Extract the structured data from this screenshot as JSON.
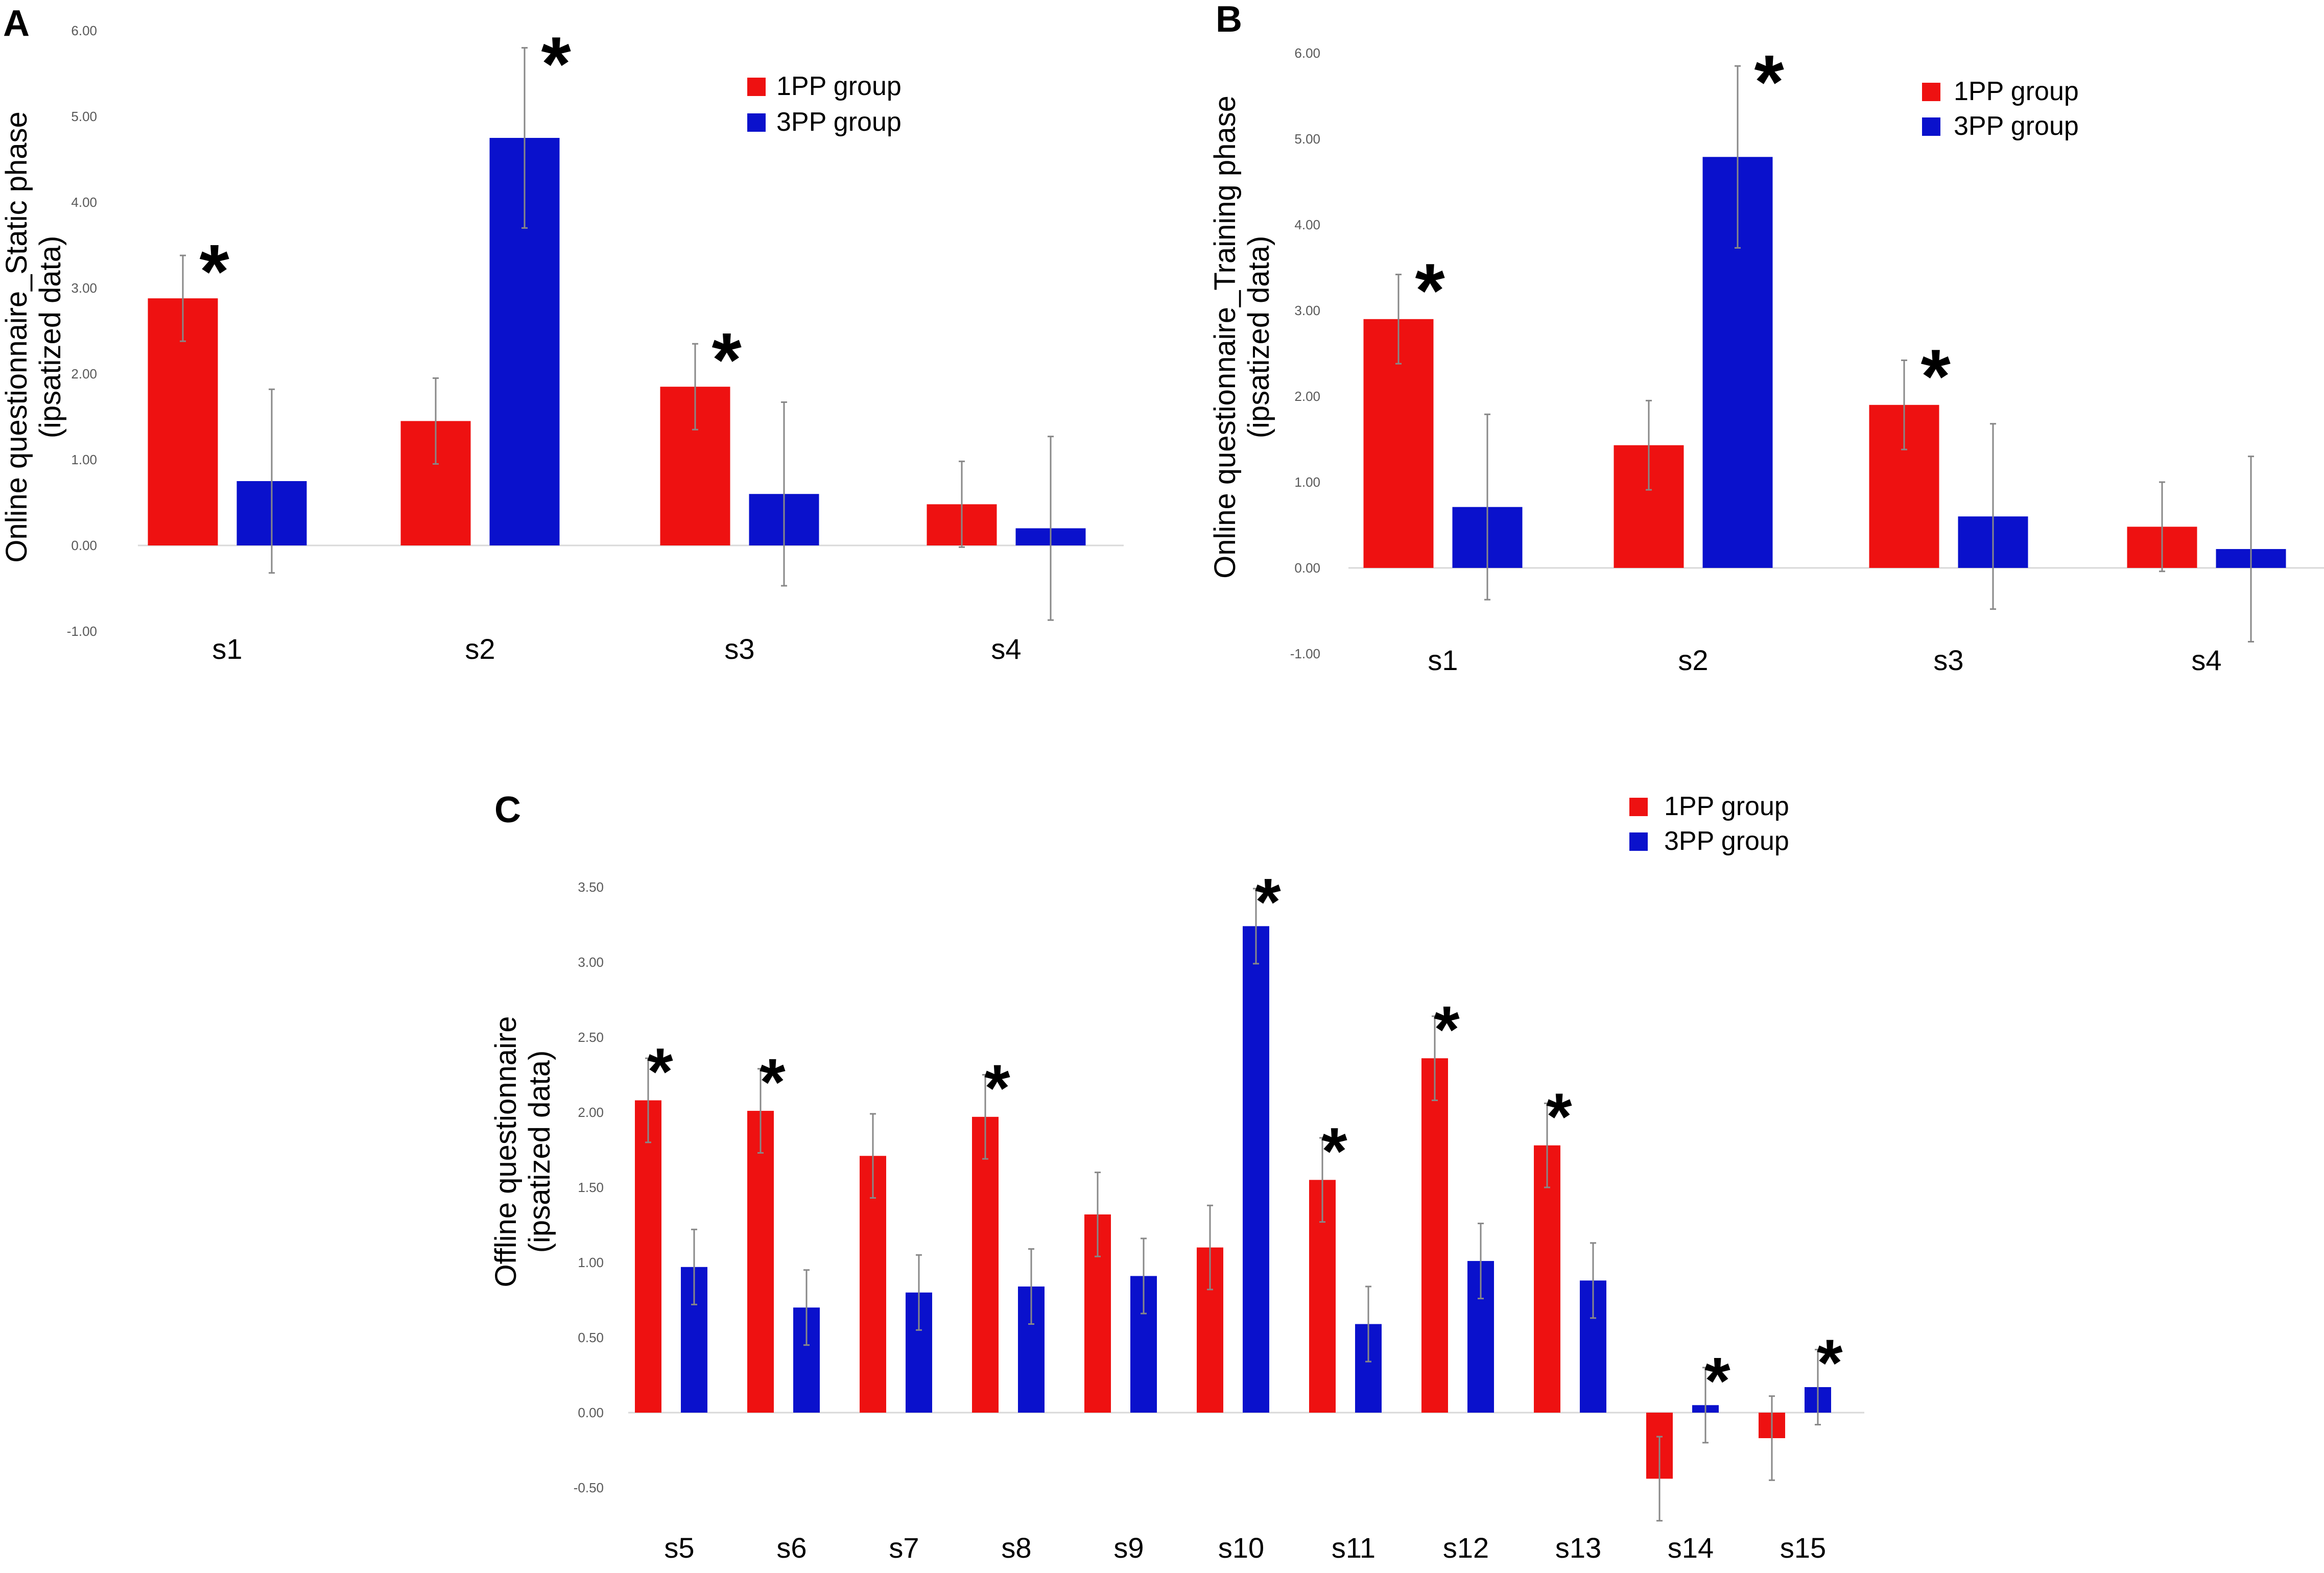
{
  "colors": {
    "group1": "#EE1111",
    "group2": "#0A11CC",
    "error": "#888888",
    "axis": "#d9d9d9",
    "text": "#000000",
    "tick": "#595959"
  },
  "chart_data": [
    {
      "panel": "A",
      "type": "bar",
      "ylabel_line1": "Online questionnaire_Static phase",
      "ylabel_line2": "(ipsatized data)",
      "ylim": [
        -1.0,
        6.0
      ],
      "yticks": [
        "-1.00",
        "0.00",
        "1.00",
        "2.00",
        "3.00",
        "4.00",
        "5.00",
        "6.00"
      ],
      "categories": [
        "s1",
        "s2",
        "s3",
        "s4"
      ],
      "series": [
        {
          "name": "1PP group",
          "values": [
            2.88,
            1.45,
            1.85,
            0.48
          ],
          "errors": [
            0.5,
            0.5,
            0.5,
            0.5
          ]
        },
        {
          "name": "3PP group",
          "values": [
            0.75,
            4.75,
            0.6,
            0.2
          ],
          "errors": [
            1.07,
            1.05,
            1.07,
            1.07
          ]
        }
      ],
      "significance": [
        {
          "category": 0,
          "series": 0,
          "mark": "*"
        },
        {
          "category": 1,
          "series": 1,
          "mark": "*"
        },
        {
          "category": 2,
          "series": 0,
          "mark": "*"
        }
      ],
      "legend_position": "top-right"
    },
    {
      "panel": "B",
      "type": "bar",
      "ylabel_line1": "Online questionnaire_Training phase",
      "ylabel_line2": "(ipsatized data)",
      "ylim": [
        -1.0,
        6.0
      ],
      "yticks": [
        "-1.00",
        "0.00",
        "1.00",
        "2.00",
        "3.00",
        "4.00",
        "5.00",
        "6.00"
      ],
      "categories": [
        "s1",
        "s2",
        "s3",
        "s4"
      ],
      "series": [
        {
          "name": "1PP group",
          "values": [
            2.9,
            1.43,
            1.9,
            0.48
          ],
          "errors": [
            0.52,
            0.52,
            0.52,
            0.52
          ]
        },
        {
          "name": "3PP group",
          "values": [
            0.71,
            4.79,
            0.6,
            0.22
          ],
          "errors": [
            1.08,
            1.06,
            1.08,
            1.08
          ]
        }
      ],
      "significance": [
        {
          "category": 0,
          "series": 0,
          "mark": "*"
        },
        {
          "category": 1,
          "series": 1,
          "mark": "*"
        },
        {
          "category": 2,
          "series": 0,
          "mark": "*"
        }
      ],
      "legend_position": "top-right"
    },
    {
      "panel": "C",
      "type": "bar",
      "ylabel_line1": "Offline questionnaire",
      "ylabel_line2": "(ipsatized data)",
      "ylim": [
        -0.5,
        3.5
      ],
      "yticks": [
        "-0.50",
        "0.00",
        "0.50",
        "1.00",
        "1.50",
        "2.00",
        "2.50",
        "3.00",
        "3.50"
      ],
      "categories": [
        "s5",
        "s6",
        "s7",
        "s8",
        "s9",
        "s10",
        "s11",
        "s12",
        "s13",
        "s14",
        "s15"
      ],
      "series": [
        {
          "name": "1PP group",
          "values": [
            2.08,
            2.01,
            1.71,
            1.97,
            1.32,
            1.1,
            1.55,
            2.36,
            1.78,
            -0.44,
            -0.17
          ],
          "errors": [
            0.28,
            0.28,
            0.28,
            0.28,
            0.28,
            0.28,
            0.28,
            0.28,
            0.28,
            0.28,
            0.28
          ]
        },
        {
          "name": "3PP group",
          "values": [
            0.97,
            0.7,
            0.8,
            0.84,
            0.91,
            3.24,
            0.59,
            1.01,
            0.88,
            0.05,
            0.17
          ],
          "errors": [
            0.25,
            0.25,
            0.25,
            0.25,
            0.25,
            0.25,
            0.25,
            0.25,
            0.25,
            0.25,
            0.25
          ]
        }
      ],
      "significance": [
        {
          "category": 0,
          "series": 0,
          "mark": "*"
        },
        {
          "category": 1,
          "series": 0,
          "mark": "*"
        },
        {
          "category": 3,
          "series": 0,
          "mark": "*"
        },
        {
          "category": 5,
          "series": 1,
          "mark": "*"
        },
        {
          "category": 6,
          "series": 0,
          "mark": "*"
        },
        {
          "category": 7,
          "series": 0,
          "mark": "*"
        },
        {
          "category": 8,
          "series": 0,
          "mark": "*"
        },
        {
          "category": 9,
          "series": 1,
          "mark": "*"
        },
        {
          "category": 10,
          "series": 1,
          "mark": "*"
        }
      ],
      "legend_position": "top-right"
    }
  ]
}
